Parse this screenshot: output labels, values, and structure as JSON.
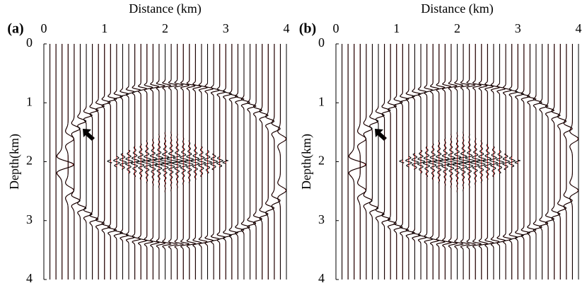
{
  "chart_data": [
    {
      "type": "wiggle",
      "title": "(a)",
      "x_label": "Distance (km)",
      "y_label": "Depth(km)",
      "xlim": [
        0,
        4
      ],
      "ylim": [
        0,
        4
      ],
      "y_inverted": true,
      "x_axis_top": true,
      "xticks": [
        0,
        1,
        2,
        3,
        4
      ],
      "yticks": [
        0,
        1,
        2,
        3,
        4
      ],
      "x": [
        0,
        0.1,
        0.2,
        0.3,
        0.4,
        0.5,
        0.6,
        0.7,
        0.8,
        0.9,
        1,
        1.1,
        1.2,
        1.3,
        1.4,
        1.5,
        1.6,
        1.7,
        1.8,
        1.9,
        2,
        2.1,
        2.2,
        2.3,
        2.4,
        2.5,
        2.6,
        2.7,
        2.8,
        2.9,
        3,
        3.1,
        3.2,
        3.3,
        3.4,
        3.5,
        3.6,
        3.7,
        3.8,
        3.9,
        4
      ],
      "trace_colors": [
        "#c00000",
        "#000000"
      ],
      "reflector": {
        "center": [
          2.15,
          2.05
        ],
        "radii": [
          1.85,
          1.35
        ]
      },
      "artifact": {
        "center": [
          2.05,
          2.0
        ],
        "half_widths": [
          1.0,
          0.55
        ]
      }
    },
    {
      "type": "wiggle",
      "title": "(b)",
      "x_label": "Distance (km)",
      "y_label": "Depth(km)",
      "xlim": [
        0,
        4
      ],
      "ylim": [
        0,
        4
      ],
      "y_inverted": true,
      "x_axis_top": true,
      "xticks": [
        0,
        1,
        2,
        3,
        4
      ],
      "yticks": [
        0,
        1,
        2,
        3,
        4
      ],
      "x": [
        0,
        0.1,
        0.2,
        0.3,
        0.4,
        0.5,
        0.6,
        0.7,
        0.8,
        0.9,
        1,
        1.1,
        1.2,
        1.3,
        1.4,
        1.5,
        1.6,
        1.7,
        1.8,
        1.9,
        2,
        2.1,
        2.2,
        2.3,
        2.4,
        2.5,
        2.6,
        2.7,
        2.8,
        2.9,
        3,
        3.1,
        3.2,
        3.3,
        3.4,
        3.5,
        3.6,
        3.7,
        3.8,
        3.9,
        4
      ],
      "trace_colors": [
        "#c00000",
        "#000000"
      ],
      "reflector": {
        "center": [
          2.15,
          2.05
        ],
        "radii": [
          1.85,
          1.35
        ]
      },
      "artifact": {
        "center": [
          2.05,
          2.0
        ],
        "half_widths": [
          1.0,
          0.55
        ]
      }
    }
  ]
}
